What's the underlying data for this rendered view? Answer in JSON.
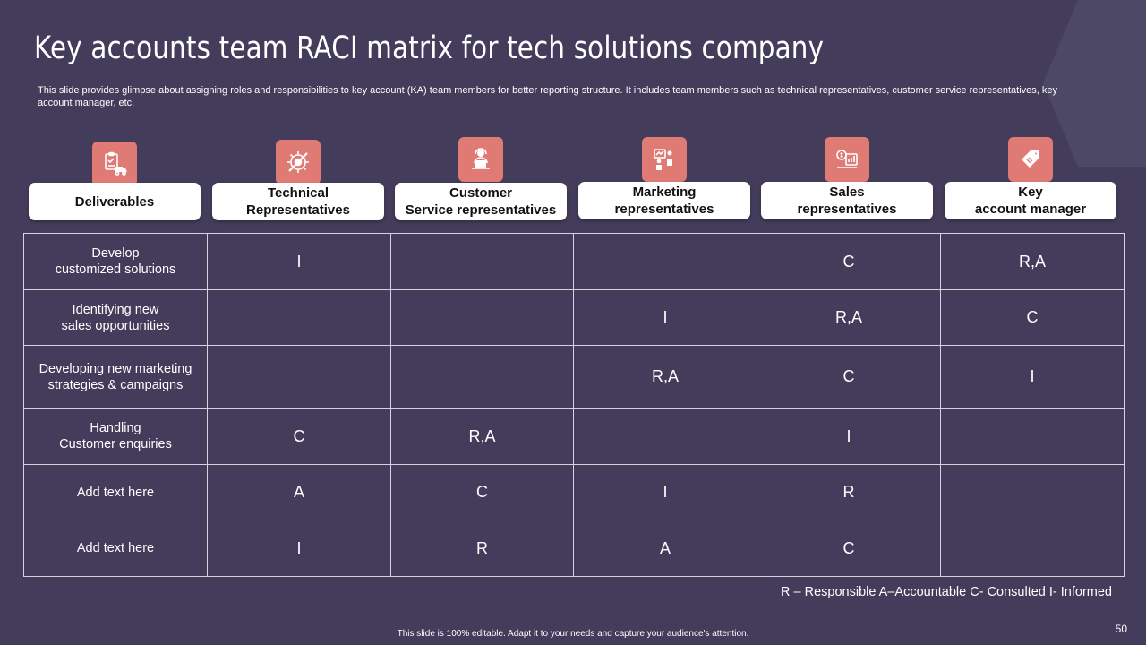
{
  "slide": {
    "title": "Key accounts team RACI matrix for tech solutions company",
    "subtitle": "This slide provides glimpse about assigning roles and responsibilities to key account (KA) team members for better reporting structure. It includes team members such as technical representatives, customer service representatives, key account manager, etc.",
    "legend": "R – Responsible  A–Accountable  C- Consulted  I- Informed",
    "footer": "This slide is 100% editable. Adapt it to your needs and capture your audience's attention.",
    "page_number": "50"
  },
  "colors": {
    "background": "#433c5a",
    "icon_tile": "#e07a74",
    "header_box": "#ffffff",
    "grid_line": "#d5d3dc"
  },
  "columns": [
    {
      "label": "Deliverables",
      "icon": "clipboard-truck-icon"
    },
    {
      "label": "Technical\nRepresentatives",
      "icon": "gears-tools-icon"
    },
    {
      "label": "Customer\nService representatives",
      "icon": "support-agent-icon"
    },
    {
      "label": "Marketing\nrepresentatives",
      "icon": "marketing-team-icon"
    },
    {
      "label": "Sales\nrepresentatives",
      "icon": "sales-chart-icon"
    },
    {
      "label": "Key\naccount manager",
      "icon": "price-tag-icon"
    }
  ],
  "rows": [
    {
      "deliverable": "Develop\ncustomized solutions",
      "values": [
        "I",
        "",
        "",
        "C",
        "R,A"
      ]
    },
    {
      "deliverable": "Identifying  new\nsales opportunities",
      "values": [
        "",
        "",
        "I",
        "R,A",
        "C"
      ]
    },
    {
      "deliverable": "Developing  new marketing\nstrategies & campaigns",
      "values": [
        "",
        "",
        "R,A",
        "C",
        "I"
      ]
    },
    {
      "deliverable": "Handling\nCustomer enquiries",
      "values": [
        "C",
        "R,A",
        "",
        "I",
        ""
      ]
    },
    {
      "deliverable": "Add text here",
      "values": [
        "A",
        "C",
        "I",
        "R",
        ""
      ]
    },
    {
      "deliverable": "Add text here",
      "values": [
        "I",
        "R",
        "A",
        "C",
        ""
      ]
    }
  ]
}
